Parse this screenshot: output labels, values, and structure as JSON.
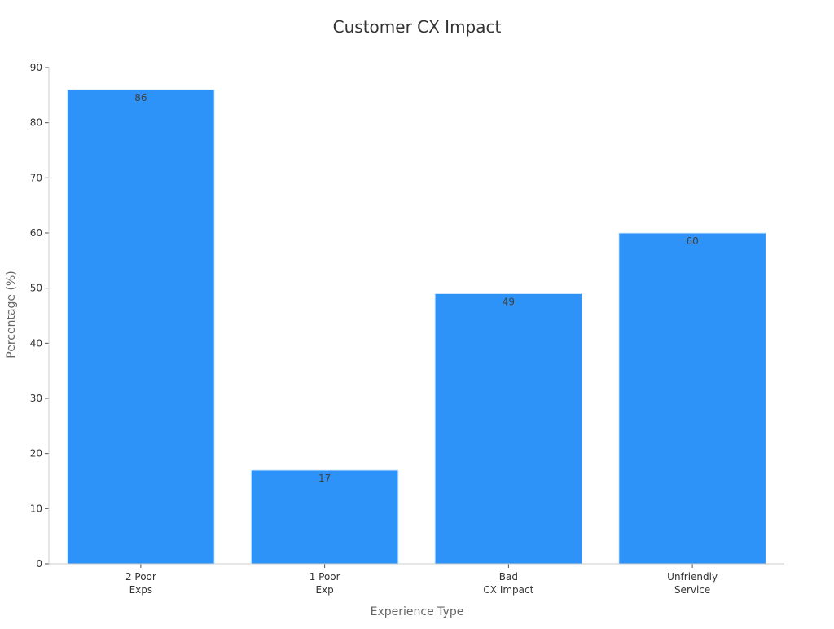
{
  "chart_data": {
    "type": "bar",
    "title": "Customer CX Impact",
    "xlabel": "Experience Type",
    "ylabel": "Percentage (%)",
    "categories": [
      [
        "2 Poor",
        "Exps"
      ],
      [
        "1 Poor",
        "Exp"
      ],
      [
        "Bad",
        "CX Impact"
      ],
      [
        "Unfriendly",
        "Service"
      ]
    ],
    "values": [
      86,
      17,
      49,
      60
    ],
    "ylim": [
      0,
      90
    ],
    "yticks": [
      0,
      10,
      20,
      30,
      40,
      50,
      60,
      70,
      80,
      90
    ],
    "grid": false,
    "legend": "none",
    "colors": {
      "bar": "#2e93f8",
      "bar_edge": "#d9ecfe"
    }
  }
}
